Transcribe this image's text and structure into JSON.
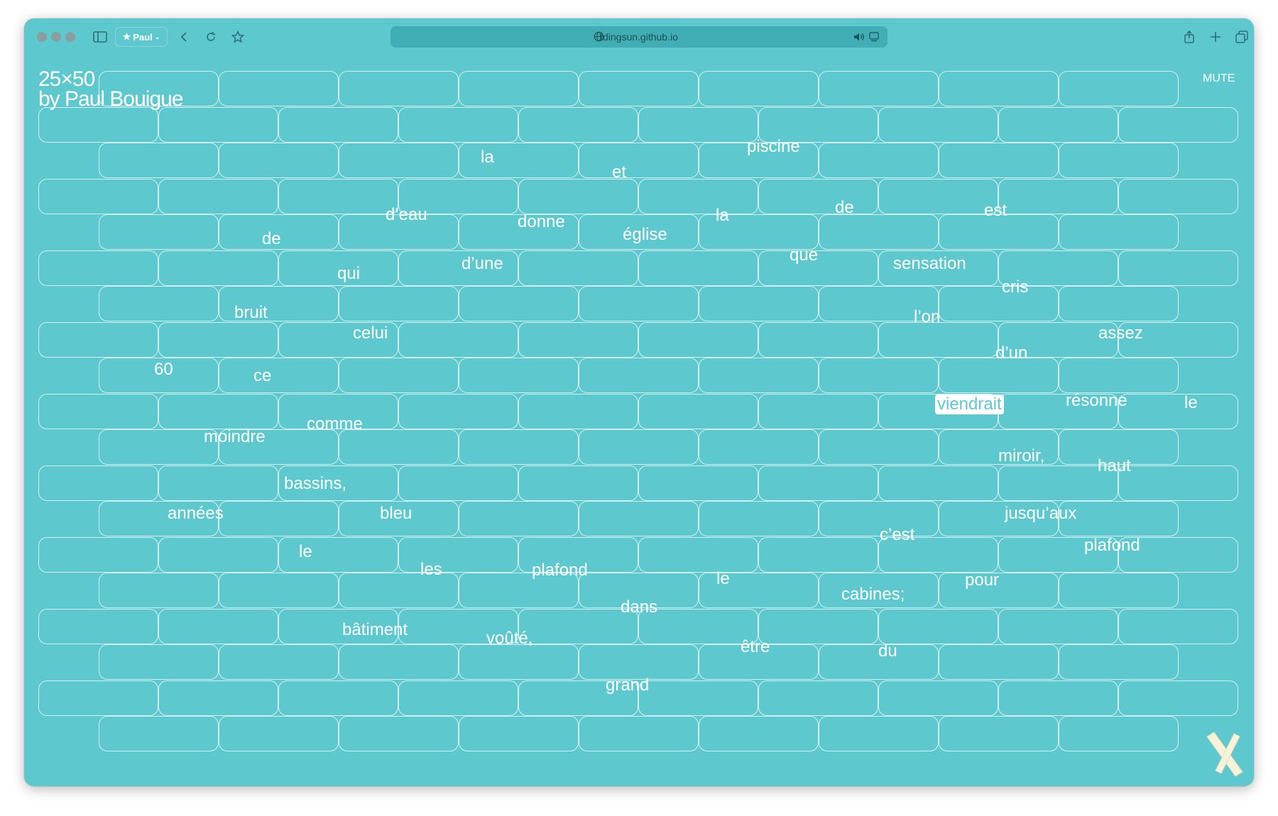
{
  "browser": {
    "profile_label": "Paul",
    "url": "tdingsun.github.io"
  },
  "page": {
    "title_line1": "25×50",
    "title_line2": "by Paul Bouigue",
    "mute_label": "MUTE"
  },
  "words": [
    {
      "text": "piscine",
      "highlighted": false
    },
    {
      "text": "la",
      "highlighted": false
    },
    {
      "text": "et",
      "highlighted": false
    },
    {
      "text": "d’eau",
      "highlighted": false
    },
    {
      "text": "donne",
      "highlighted": false
    },
    {
      "text": "la",
      "highlighted": false
    },
    {
      "text": "de",
      "highlighted": false
    },
    {
      "text": "est",
      "highlighted": false
    },
    {
      "text": "de",
      "highlighted": false
    },
    {
      "text": "église",
      "highlighted": false
    },
    {
      "text": "que",
      "highlighted": false
    },
    {
      "text": "d’une",
      "highlighted": false
    },
    {
      "text": "sensation",
      "highlighted": false
    },
    {
      "text": "qui",
      "highlighted": false
    },
    {
      "text": "cris",
      "highlighted": false
    },
    {
      "text": "bruit",
      "highlighted": false
    },
    {
      "text": "l’on",
      "highlighted": false
    },
    {
      "text": "celui",
      "highlighted": false
    },
    {
      "text": "assez",
      "highlighted": false
    },
    {
      "text": "d’un",
      "highlighted": false
    },
    {
      "text": "60",
      "highlighted": false
    },
    {
      "text": "ce",
      "highlighted": false
    },
    {
      "text": "viendrait",
      "highlighted": true
    },
    {
      "text": "résonne",
      "highlighted": false
    },
    {
      "text": "le",
      "highlighted": false
    },
    {
      "text": "comme",
      "highlighted": false
    },
    {
      "text": "moindre",
      "highlighted": false
    },
    {
      "text": "miroir,",
      "highlighted": false
    },
    {
      "text": "haut",
      "highlighted": false
    },
    {
      "text": "bassins,",
      "highlighted": false
    },
    {
      "text": "années",
      "highlighted": false
    },
    {
      "text": "bleu",
      "highlighted": false
    },
    {
      "text": "jusqu’aux",
      "highlighted": false
    },
    {
      "text": "c’est",
      "highlighted": false
    },
    {
      "text": "plafond",
      "highlighted": false
    },
    {
      "text": "le",
      "highlighted": false
    },
    {
      "text": "les",
      "highlighted": false
    },
    {
      "text": "plafond",
      "highlighted": false
    },
    {
      "text": "le",
      "highlighted": false
    },
    {
      "text": "pour",
      "highlighted": false
    },
    {
      "text": "cabines;",
      "highlighted": false
    },
    {
      "text": "dans",
      "highlighted": false
    },
    {
      "text": "bâtiment",
      "highlighted": false
    },
    {
      "text": "voûté,",
      "highlighted": false
    },
    {
      "text": "être",
      "highlighted": false
    },
    {
      "text": "du",
      "highlighted": false
    },
    {
      "text": "grand",
      "highlighted": false
    }
  ],
  "colors": {
    "background": "#5ec8cf",
    "brick_outline": "#ffffff",
    "text": "#ffffff"
  }
}
